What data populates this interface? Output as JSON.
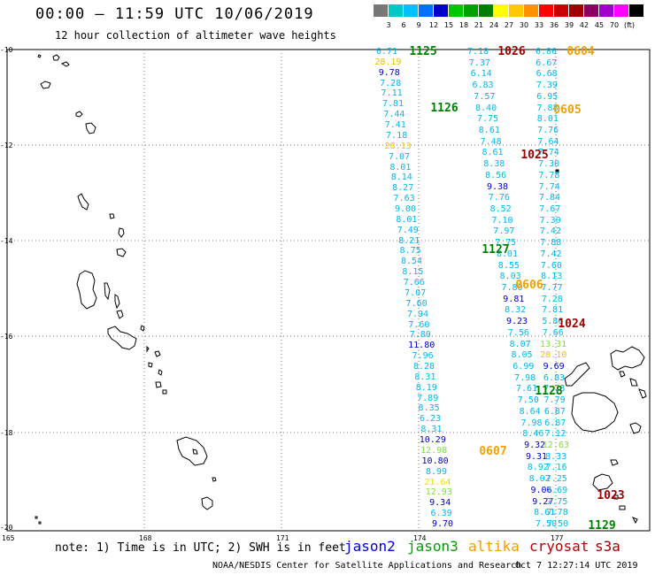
{
  "header": {
    "title": "00:00 – 11:59 UTC 10/06/2019",
    "subtitle": "12 hour collection of altimeter wave heights"
  },
  "legend": {
    "colors": [
      "#777777",
      "#00c8c8",
      "#00c0ff",
      "#0070ff",
      "#0000c8",
      "#00c800",
      "#00a000",
      "#008000",
      "#ffff00",
      "#ffc800",
      "#ff9000",
      "#ff0000",
      "#c80000",
      "#a00000",
      "#8c0064",
      "#a000c8",
      "#ff00ff",
      "#000000"
    ],
    "labels": [
      "3",
      "6",
      "9",
      "12",
      "15",
      "18",
      "21",
      "24",
      "27",
      "30",
      "33",
      "36",
      "39",
      "42",
      "45",
      "70",
      "(ft)"
    ]
  },
  "axes": {
    "lat_labels": [
      "-10",
      "-12",
      "-14",
      "-16",
      "-18",
      "-20"
    ],
    "lon_labels": [
      "165",
      "168",
      "171",
      "174",
      "177"
    ]
  },
  "footer": {
    "note": "note: 1) Time is in UTC; 2) SWH is in feet",
    "satellites": [
      {
        "name": "jason2",
        "color": "#0000e0"
      },
      {
        "name": "jason3",
        "color": "#00a000"
      },
      {
        "name": "altika",
        "color": "#f0a000"
      },
      {
        "name": "cryosat",
        "color": "#c00000"
      },
      {
        "name": "s3a",
        "color": "#a00000"
      }
    ],
    "credit": "NOAA/NESDIS Center for Satellite Applications and Research",
    "timestamp": "Oct  7 12:27:14 UTC 2019"
  },
  "track_a": [
    {
      "v": "6.71",
      "c": "#00b8f0"
    },
    {
      "v": "28.19",
      "c": "#f0c000"
    },
    {
      "v": "9.78",
      "c": "#0000c8"
    },
    {
      "v": "7.28",
      "c": "#00b8f0"
    },
    {
      "v": "7.11",
      "c": "#00b8f0"
    },
    {
      "v": "7.81",
      "c": "#00b8f0"
    },
    {
      "v": "7.44",
      "c": "#00b8f0"
    },
    {
      "v": "7.41",
      "c": "#00b8f0"
    },
    {
      "v": "7.18",
      "c": "#00b8f0"
    },
    {
      "v": "28.13",
      "c": "#f0c000"
    },
    {
      "v": "7.07",
      "c": "#00b8f0"
    },
    {
      "v": "8.01",
      "c": "#00b8f0"
    },
    {
      "v": "8.14",
      "c": "#00b8f0"
    },
    {
      "v": "8.27",
      "c": "#00b8f0"
    },
    {
      "v": "7.63",
      "c": "#00b8f0"
    },
    {
      "v": "9.00",
      "c": "#00b8f0"
    },
    {
      "v": "8.01",
      "c": "#00b8f0"
    },
    {
      "v": "7.49",
      "c": "#00b8f0"
    },
    {
      "v": "8.21",
      "c": "#00b8f0"
    },
    {
      "v": "8.75",
      "c": "#00b8f0"
    },
    {
      "v": "8.54",
      "c": "#00b8f0"
    },
    {
      "v": "8.15",
      "c": "#00b8f0"
    },
    {
      "v": "7.66",
      "c": "#00b8f0"
    },
    {
      "v": "7.07",
      "c": "#00b8f0"
    },
    {
      "v": "7.60",
      "c": "#00b8f0"
    },
    {
      "v": "7.94",
      "c": "#00b8f0"
    },
    {
      "v": "7.60",
      "c": "#00b8f0"
    },
    {
      "v": "7.80",
      "c": "#00b8f0"
    },
    {
      "v": "11.80",
      "c": "#0000c8"
    },
    {
      "v": "7.96",
      "c": "#00b8f0"
    },
    {
      "v": "8.28",
      "c": "#00b8f0"
    },
    {
      "v": "8.31",
      "c": "#00b8f0"
    },
    {
      "v": "8.19",
      "c": "#00b8f0"
    },
    {
      "v": "7.89",
      "c": "#00b8f0"
    },
    {
      "v": "8.35",
      "c": "#00b8f0"
    },
    {
      "v": "6.23",
      "c": "#00b8f0"
    },
    {
      "v": "8.31",
      "c": "#00b8f0"
    },
    {
      "v": "10.29",
      "c": "#0000c8"
    },
    {
      "v": "12.98",
      "c": "#80e040"
    },
    {
      "v": "10.80",
      "c": "#0000c8"
    },
    {
      "v": "8.99",
      "c": "#00b8f0"
    },
    {
      "v": "21.64",
      "c": "#f0e000"
    },
    {
      "v": "12.93",
      "c": "#80e040"
    },
    {
      "v": "9.34",
      "c": "#0000c8"
    },
    {
      "v": "6.39",
      "c": "#00b8f0"
    },
    {
      "v": "9.70",
      "c": "#0000c8"
    }
  ],
  "track_b": [
    {
      "v": "7.18",
      "c": "#00b8f0"
    },
    {
      "v": "7.37",
      "c": "#00b8f0"
    },
    {
      "v": "6.14",
      "c": "#00b8f0"
    },
    {
      "v": "6.83",
      "c": "#00b8f0"
    },
    {
      "v": "7.57",
      "c": "#00b8f0"
    },
    {
      "v": "8.40",
      "c": "#00b8f0"
    },
    {
      "v": "7.75",
      "c": "#00b8f0"
    },
    {
      "v": "8.61",
      "c": "#00b8f0"
    },
    {
      "v": "7.48",
      "c": "#00b8f0"
    },
    {
      "v": "8.61",
      "c": "#00b8f0"
    },
    {
      "v": "8.38",
      "c": "#00b8f0"
    },
    {
      "v": "8.56",
      "c": "#00b8f0"
    },
    {
      "v": "9.38",
      "c": "#0000c8"
    },
    {
      "v": "7.76",
      "c": "#00b8f0"
    },
    {
      "v": "8.52",
      "c": "#00b8f0"
    },
    {
      "v": "7.10",
      "c": "#00b8f0"
    },
    {
      "v": "7.97",
      "c": "#00b8f0"
    },
    {
      "v": "7.75",
      "c": "#00b8f0"
    },
    {
      "v": "8.01",
      "c": "#00b8f0"
    },
    {
      "v": "8.55",
      "c": "#00b8f0"
    },
    {
      "v": "8.03",
      "c": "#00b8f0"
    },
    {
      "v": "7.80",
      "c": "#00b8f0"
    },
    {
      "v": "9.81",
      "c": "#0000c8"
    },
    {
      "v": "8.32",
      "c": "#00b8f0"
    },
    {
      "v": "9.23",
      "c": "#0000c8"
    },
    {
      "v": "7.56",
      "c": "#00b8f0"
    },
    {
      "v": "8.07",
      "c": "#00b8f0"
    },
    {
      "v": "8.05",
      "c": "#00b8f0"
    },
    {
      "v": "6.99",
      "c": "#00b8f0"
    },
    {
      "v": "7.98",
      "c": "#00b8f0"
    },
    {
      "v": "7.61",
      "c": "#00b8f0"
    },
    {
      "v": "7.50",
      "c": "#00b8f0"
    },
    {
      "v": "8.64",
      "c": "#00b8f0"
    },
    {
      "v": "7.98",
      "c": "#00b8f0"
    },
    {
      "v": "8.46",
      "c": "#00b8f0"
    },
    {
      "v": "9.32",
      "c": "#0000c8"
    },
    {
      "v": "9.31",
      "c": "#0000c8"
    },
    {
      "v": "8.92",
      "c": "#00b8f0"
    },
    {
      "v": "8.02",
      "c": "#00b8f0"
    },
    {
      "v": "9.06",
      "c": "#0000c8"
    },
    {
      "v": "9.27",
      "c": "#0000c8"
    },
    {
      "v": "8.61",
      "c": "#00b8f0"
    },
    {
      "v": "7.50",
      "c": "#00b8f0"
    }
  ],
  "track_c": [
    {
      "v": "6.86",
      "c": "#00b8f0"
    },
    {
      "v": "6.67",
      "c": "#00b8f0"
    },
    {
      "v": "6.68",
      "c": "#00b8f0"
    },
    {
      "v": "7.39",
      "c": "#00b8f0"
    },
    {
      "v": "6.95",
      "c": "#00b8f0"
    },
    {
      "v": "7.88",
      "c": "#00b8f0"
    },
    {
      "v": "8.01",
      "c": "#00b8f0"
    },
    {
      "v": "7.76",
      "c": "#00b8f0"
    },
    {
      "v": "7.64",
      "c": "#00b8f0"
    },
    {
      "v": "7.74",
      "c": "#00b8f0"
    },
    {
      "v": "7.30",
      "c": "#00b8f0"
    },
    {
      "v": "7.78",
      "c": "#00b8f0"
    },
    {
      "v": "7.74",
      "c": "#00b8f0"
    },
    {
      "v": "7.84",
      "c": "#00b8f0"
    },
    {
      "v": "7.67",
      "c": "#00b8f0"
    },
    {
      "v": "7.30",
      "c": "#00b8f0"
    },
    {
      "v": "7.42",
      "c": "#00b8f0"
    },
    {
      "v": "7.88",
      "c": "#00b8f0"
    },
    {
      "v": "7.42",
      "c": "#00b8f0"
    },
    {
      "v": "7.60",
      "c": "#00b8f0"
    },
    {
      "v": "8.13",
      "c": "#00b8f0"
    },
    {
      "v": "7.77",
      "c": "#00b8f0"
    },
    {
      "v": "7.28",
      "c": "#00b8f0"
    },
    {
      "v": "7.81",
      "c": "#00b8f0"
    },
    {
      "v": "5.86",
      "c": "#00b8f0"
    },
    {
      "v": "7.66",
      "c": "#00b8f0"
    },
    {
      "v": "13.31",
      "c": "#80e040"
    },
    {
      "v": "28.10",
      "c": "#f0c000"
    },
    {
      "v": "9.69",
      "c": "#0000c8"
    },
    {
      "v": "6.83",
      "c": "#00b8f0"
    },
    {
      "v": "7.78",
      "c": "#00b8f0"
    },
    {
      "v": "7.79",
      "c": "#00b8f0"
    },
    {
      "v": "6.87",
      "c": "#00b8f0"
    },
    {
      "v": "6.87",
      "c": "#00b8f0"
    },
    {
      "v": "7.12",
      "c": "#00b8f0"
    },
    {
      "v": "12.63",
      "c": "#80e040"
    },
    {
      "v": "8.33",
      "c": "#00b8f0"
    },
    {
      "v": "7.16",
      "c": "#00b8f0"
    },
    {
      "v": "7.25",
      "c": "#00b8f0"
    },
    {
      "v": "7.69",
      "c": "#00b8f0"
    },
    {
      "v": "7.75",
      "c": "#00b8f0"
    },
    {
      "v": "7.78",
      "c": "#00b8f0"
    },
    {
      "v": "7.50",
      "c": "#00b8f0"
    }
  ],
  "time_labels": [
    {
      "t": "1125",
      "c": "#008000"
    },
    {
      "t": "1026",
      "c": "#a00000"
    },
    {
      "t": "0604",
      "c": "#f0a000"
    },
    {
      "t": "1126",
      "c": "#008000"
    },
    {
      "t": "0605",
      "c": "#f0a000"
    },
    {
      "t": "1025",
      "c": "#a00000"
    },
    {
      "t": "1127",
      "c": "#008000"
    },
    {
      "t": "0606",
      "c": "#f0a000"
    },
    {
      "t": "1024",
      "c": "#a00000"
    },
    {
      "t": "1128",
      "c": "#008000"
    },
    {
      "t": "0607",
      "c": "#f0a000"
    },
    {
      "t": "1023",
      "c": "#a00000"
    },
    {
      "t": "1129",
      "c": "#008000"
    }
  ]
}
